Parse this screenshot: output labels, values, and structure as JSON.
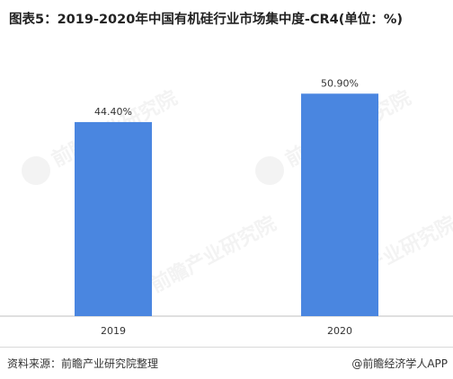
{
  "title": "图表5：2019-2020年中国有机硅行业市场集中度-CR4(单位：%)",
  "footer": {
    "source": "资料来源：前瞻产业研究院整理",
    "brand": "@前瞻经济学人APP"
  },
  "watermark": {
    "text": "前瞻产业研究院"
  },
  "chart_data": {
    "type": "bar",
    "categories": [
      "2019",
      "2020"
    ],
    "values": [
      44.4,
      50.9
    ],
    "value_labels": [
      "44.40%",
      "50.90%"
    ],
    "ylim": [
      0,
      60
    ],
    "grid": false,
    "bar_color": "#4a86e0"
  }
}
